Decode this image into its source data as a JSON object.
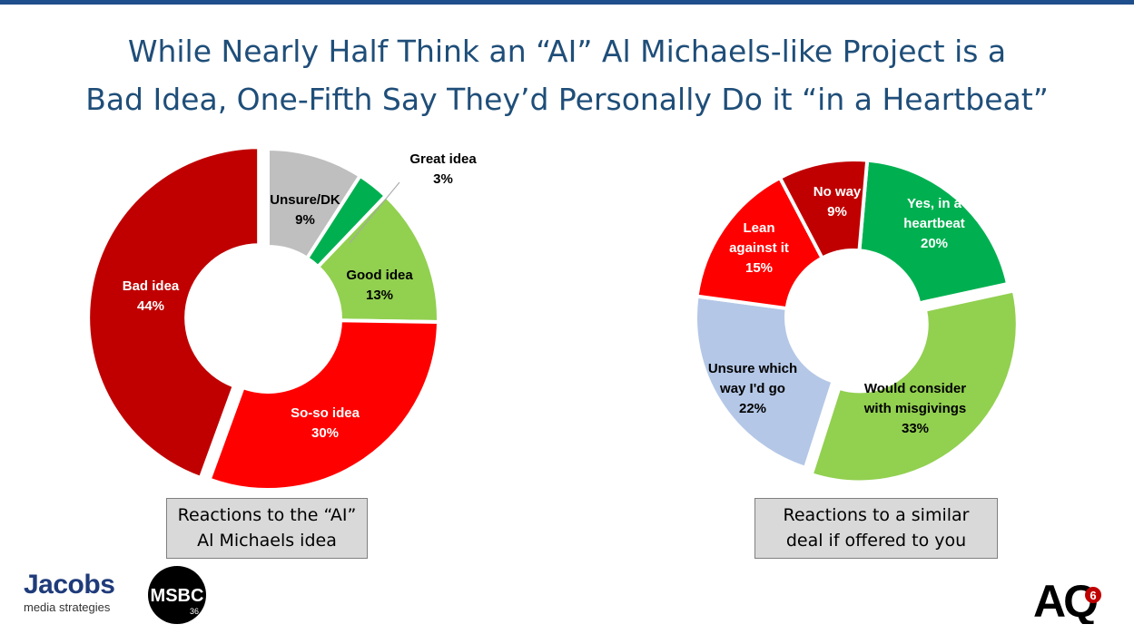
{
  "title": {
    "line1": "While Nearly Half Think an “AI” Al Michaels-like Project is a",
    "line2": "Bad  Idea, One-Fifth Say They’d Personally Do it “in a Heartbeat”"
  },
  "colors": {
    "title": "#1f4e79",
    "dark_red": "#c00000",
    "red": "#ff0000",
    "light_green": "#92d050",
    "green": "#00b050",
    "gray": "#bfbfbf",
    "light_blue": "#b4c7e7"
  },
  "chart_data": [
    {
      "type": "pie",
      "variant": "donut",
      "caption": [
        "Reactions to the “AI”",
        "Al Michaels idea"
      ],
      "slices": [
        {
          "name": "Unsure/DK",
          "label": "Unsure/DK",
          "value": 9,
          "value_label": "9%",
          "color": "#bfbfbf"
        },
        {
          "name": "Great idea",
          "label": "Great idea",
          "value": 3,
          "value_label": "3%",
          "color": "#00b050"
        },
        {
          "name": "Good idea",
          "label": "Good idea",
          "value": 13,
          "value_label": "13%",
          "color": "#92d050"
        },
        {
          "name": "So-so idea",
          "label": "So-so idea",
          "value": 30,
          "value_label": "30%",
          "color": "#ff0000"
        },
        {
          "name": "Bad idea",
          "label": "Bad idea",
          "value": 44,
          "value_label": "44%",
          "color": "#c00000"
        }
      ]
    },
    {
      "type": "pie",
      "variant": "donut",
      "caption": [
        "Reactions to a similar",
        "deal if offered to you"
      ],
      "slices": [
        {
          "name": "Yes, in a heartbeat",
          "label": "Yes, in a|heartbeat",
          "value": 20,
          "value_label": "20%",
          "color": "#00b050"
        },
        {
          "name": "Would consider with misgivings",
          "label": "Would consider|with misgivings",
          "value": 33,
          "value_label": "33%",
          "color": "#92d050"
        },
        {
          "name": "Unsure which way I'd go",
          "label": "Unsure which|way I'd go",
          "value": 22,
          "value_label": "22%",
          "color": "#b4c7e7"
        },
        {
          "name": "Lean against it",
          "label": "Lean|against it",
          "value": 15,
          "value_label": "15%",
          "color": "#ff0000"
        },
        {
          "name": "No way",
          "label": "No way",
          "value": 9,
          "value_label": "9%",
          "color": "#c00000"
        }
      ]
    }
  ],
  "logos": {
    "jacobs_brand": "Jacobs",
    "jacobs_sub": "media strategies",
    "msbc_text": "MSBC",
    "msbc_small": "36",
    "aq_text": "AQ",
    "aq_small": "6"
  }
}
